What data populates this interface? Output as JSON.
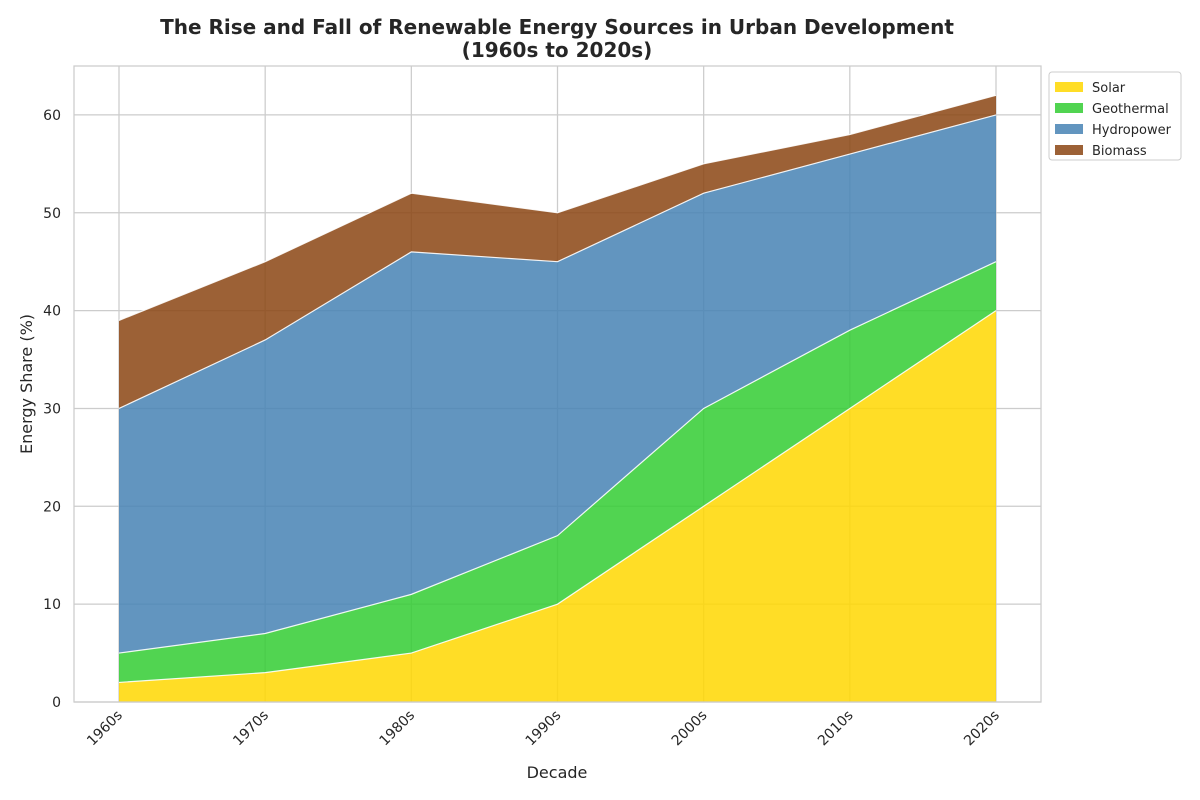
{
  "chart_data": {
    "type": "area",
    "stacked": true,
    "title_lines": [
      "The Rise and Fall of Renewable Energy Sources in Urban Development",
      "(1960s to 2020s)"
    ],
    "xlabel": "Decade",
    "ylabel": "Energy Share (%)",
    "categories": [
      "1960s",
      "1970s",
      "1980s",
      "1990s",
      "2000s",
      "2010s",
      "2020s"
    ],
    "ylim": [
      0,
      65
    ],
    "yticks": [
      0,
      10,
      20,
      30,
      40,
      50,
      60
    ],
    "grid": true,
    "legend_position": "upper right, outside plot",
    "series": [
      {
        "name": "Solar",
        "color": "#FFD700",
        "values": [
          2,
          3,
          5,
          10,
          20,
          30,
          40
        ]
      },
      {
        "name": "Geothermal",
        "color": "#32CD32",
        "values": [
          3,
          4,
          6,
          7,
          10,
          8,
          5
        ]
      },
      {
        "name": "Hydropower",
        "color": "#4682B4",
        "values": [
          25,
          30,
          35,
          28,
          22,
          18,
          15
        ]
      },
      {
        "name": "Biomass",
        "color": "#8B4513",
        "values": [
          9,
          8,
          6,
          5,
          3,
          2,
          2
        ]
      }
    ]
  }
}
